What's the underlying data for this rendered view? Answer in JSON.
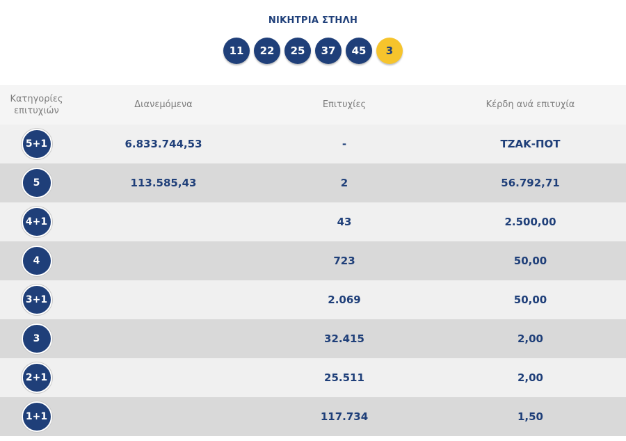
{
  "title": "ΝΙΚΗΤΡΙΑ ΣΤΗΛΗ",
  "numbers": [
    "11",
    "22",
    "25",
    "37",
    "45"
  ],
  "joker": "3",
  "headers": {
    "category_line1": "Κατηγορίες",
    "category_line2": "επιτυχιών",
    "distributed": "Διανεμόμενα",
    "winners": "Επιτυχίες",
    "prize": "Κέρδη ανά επιτυχία"
  },
  "rows": [
    {
      "category": "5+1",
      "distributed": "6.833.744,53",
      "winners": "-",
      "prize": "ΤΖΑΚ-ΠΟΤ"
    },
    {
      "category": "5",
      "distributed": "113.585,43",
      "winners": "2",
      "prize": "56.792,71"
    },
    {
      "category": "4+1",
      "distributed": "",
      "winners": "43",
      "prize": "2.500,00"
    },
    {
      "category": "4",
      "distributed": "",
      "winners": "723",
      "prize": "50,00"
    },
    {
      "category": "3+1",
      "distributed": "",
      "winners": "2.069",
      "prize": "50,00"
    },
    {
      "category": "3",
      "distributed": "",
      "winners": "32.415",
      "prize": "2,00"
    },
    {
      "category": "2+1",
      "distributed": "",
      "winners": "25.511",
      "prize": "2,00"
    },
    {
      "category": "1+1",
      "distributed": "",
      "winners": "117.734",
      "prize": "1,50"
    }
  ],
  "colors": {
    "primary": "#1f3f79",
    "joker": "#f6c42c",
    "row_light": "#f0f0f0",
    "row_dark": "#d9d9d9"
  }
}
